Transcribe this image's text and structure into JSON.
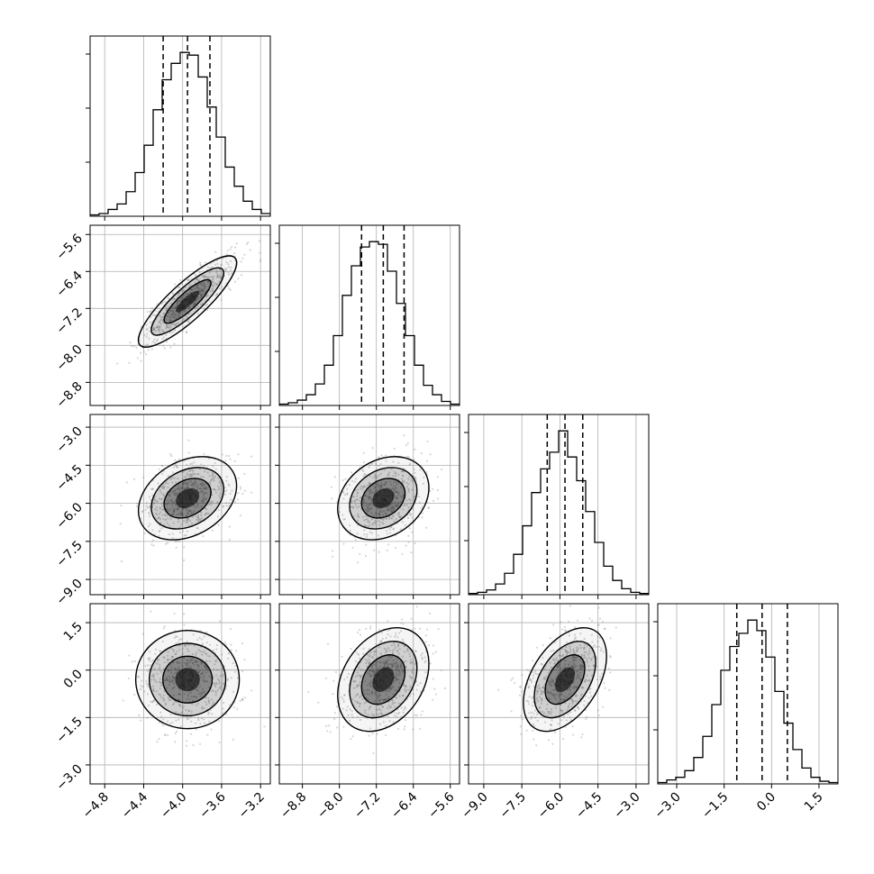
{
  "chart_data": {
    "type": "corner",
    "parameters": 4,
    "grid": true,
    "colors": {
      "line": "#000000",
      "grid": "#b0b0b0",
      "scatter": "#8a8a8a",
      "fill": "#000000"
    },
    "params": [
      {
        "index": 0,
        "range": [
          -4.95,
          -3.1
        ],
        "ticks": [
          -4.8,
          -4.4,
          -4.0,
          -3.6,
          -3.2
        ],
        "tick_labels": [
          "−4.8",
          "−4.4",
          "−4.0",
          "−3.6",
          "−3.2"
        ],
        "mean": -3.95,
        "sd": 0.24,
        "quantiles": [
          -4.2,
          -3.95,
          -3.72
        ]
      },
      {
        "index": 1,
        "range": [
          -9.3,
          -5.4
        ],
        "ticks": [
          -8.8,
          -8.0,
          -7.2,
          -6.4,
          -5.6
        ],
        "tick_labels": [
          "−8.8",
          "−8.0",
          "−7.2",
          "−6.4",
          "−5.6"
        ],
        "mean": -7.05,
        "sd": 0.47,
        "quantiles": [
          -7.52,
          -7.05,
          -6.6
        ]
      },
      {
        "index": 2,
        "range": [
          -9.6,
          -2.5
        ],
        "ticks": [
          -9.0,
          -7.5,
          -6.0,
          -4.5,
          -3.0
        ],
        "tick_labels": [
          "−9.0",
          "−7.5",
          "−6.0",
          "−4.5",
          "−3.0"
        ],
        "mean": -5.8,
        "sd": 0.78,
        "quantiles": [
          -6.5,
          -5.8,
          -5.1
        ]
      },
      {
        "index": 3,
        "range": [
          -3.6,
          2.1
        ],
        "ticks": [
          -3.0,
          -1.5,
          0.0,
          1.5
        ],
        "tick_labels": [
          "−3.0",
          "−1.5",
          "0.0",
          "1.5"
        ],
        "mean": -0.3,
        "sd": 0.78,
        "quantiles": [
          -1.1,
          -0.3,
          0.5
        ]
      }
    ],
    "correlations": [
      {
        "pair": [
          0,
          1
        ],
        "rho": 0.85
      },
      {
        "pair": [
          0,
          2
        ],
        "rho": 0.3
      },
      {
        "pair": [
          0,
          3
        ],
        "rho": 0.0
      },
      {
        "pair": [
          1,
          2
        ],
        "rho": 0.25
      },
      {
        "pair": [
          1,
          3
        ],
        "rho": 0.3
      },
      {
        "pair": [
          2,
          3
        ],
        "rho": 0.45
      }
    ],
    "histograms": [
      {
        "param": 0,
        "counts": [
          1,
          2,
          5,
          9,
          18,
          32,
          52,
          78,
          100,
          112,
          120,
          118,
          102,
          80,
          58,
          36,
          22,
          11,
          5,
          2
        ]
      },
      {
        "param": 1,
        "counts": [
          1,
          2,
          4,
          8,
          16,
          30,
          52,
          82,
          104,
          118,
          122,
          120,
          100,
          76,
          52,
          30,
          15,
          8,
          3,
          1
        ]
      },
      {
        "param": 2,
        "counts": [
          1,
          2,
          4,
          9,
          18,
          34,
          58,
          86,
          106,
          120,
          138,
          116,
          96,
          70,
          44,
          24,
          12,
          5,
          2,
          1
        ]
      },
      {
        "param": 3,
        "counts": [
          1,
          3,
          5,
          10,
          20,
          36,
          60,
          86,
          104,
          114,
          124,
          116,
          96,
          70,
          46,
          26,
          12,
          5,
          2,
          1
        ]
      }
    ]
  }
}
